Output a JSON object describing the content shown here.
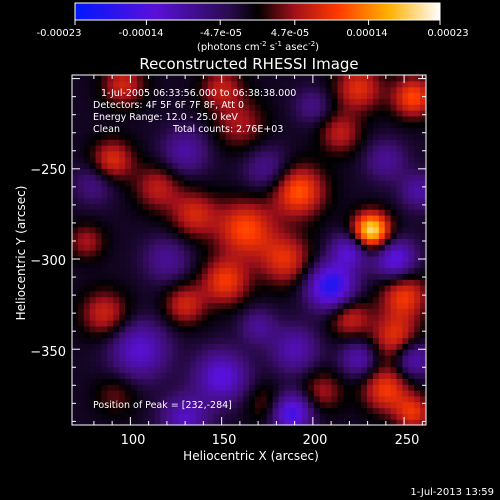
{
  "colorbar": {
    "ticks": [
      "-0.00023",
      "-0.00014",
      "-4.7e-05",
      "4.7e-05",
      "0.00014",
      "0.00023"
    ],
    "tick_values": [
      -0.00023,
      -0.00014,
      -4.7e-05,
      4.7e-05,
      0.00014,
      0.00023
    ],
    "range": [
      -0.00023,
      0.00023
    ],
    "units": "(photons cm",
    "units_exp1": "-2",
    "units_mid": " s",
    "units_exp2": "-1",
    "units_mid2": " asec",
    "units_exp3": "-2",
    "units_close": ")"
  },
  "title": "Reconstructed RHESSI Image",
  "annotations": {
    "time": "1-Jul-2005 06:33:56.000 to 06:38:38.000",
    "detectors": "Detectors: 4F 5F 6F 7F 8F, Att 0",
    "energy": "Energy Range: 12.0 - 25.0 keV",
    "method": "Clean",
    "counts": "Total counts: 2.76E+03",
    "peak": "Position of Peak = [232,-284]"
  },
  "footer_date": "1-Jul-2013 13:59",
  "colors": {
    "background": "#000000",
    "axes": "#ffffff",
    "peak": "#ffffdc"
  },
  "chart_data": {
    "type": "heatmap",
    "title": "Reconstructed RHESSI Image",
    "xlabel": "Heliocentric X (arcsec)",
    "ylabel": "Heliocentric Y (arcsec)",
    "xlim": [
      68,
      262
    ],
    "ylim": [
      -392,
      -198
    ],
    "xticks": [
      100,
      150,
      200,
      250
    ],
    "xtick_labels": [
      "100",
      "150",
      "200",
      "250"
    ],
    "yticks": [
      -250,
      -300,
      -350
    ],
    "ytick_labels": [
      "−250",
      "−300",
      "−350"
    ],
    "colormap": "blue-purple-red-yellow-white",
    "peak_position": [
      232,
      -284
    ],
    "sources": [
      {
        "x": 232,
        "y": -284,
        "amp": 1.0,
        "r": 7
      },
      {
        "x": 192,
        "y": -262,
        "amp": 0.6,
        "r": 10
      },
      {
        "x": 255,
        "y": -210,
        "amp": 0.55,
        "r": 8
      },
      {
        "x": 225,
        "y": -205,
        "amp": 0.45,
        "r": 9
      },
      {
        "x": 215,
        "y": -230,
        "amp": 0.35,
        "r": 8
      },
      {
        "x": 96,
        "y": -203,
        "amp": 0.4,
        "r": 8
      },
      {
        "x": 90,
        "y": -245,
        "amp": 0.45,
        "r": 8
      },
      {
        "x": 115,
        "y": -260,
        "amp": 0.35,
        "r": 9
      },
      {
        "x": 160,
        "y": -225,
        "amp": 0.3,
        "r": 10
      },
      {
        "x": 150,
        "y": -205,
        "amp": 0.35,
        "r": 8
      },
      {
        "x": 163,
        "y": -283,
        "amp": 0.55,
        "r": 11
      },
      {
        "x": 135,
        "y": -275,
        "amp": 0.4,
        "r": 9
      },
      {
        "x": 185,
        "y": -300,
        "amp": 0.45,
        "r": 10
      },
      {
        "x": 152,
        "y": -312,
        "amp": 0.5,
        "r": 9
      },
      {
        "x": 130,
        "y": -325,
        "amp": 0.4,
        "r": 8
      },
      {
        "x": 86,
        "y": -330,
        "amp": 0.4,
        "r": 9
      },
      {
        "x": 76,
        "y": -290,
        "amp": 0.3,
        "r": 7
      },
      {
        "x": 250,
        "y": -320,
        "amp": 0.5,
        "r": 9
      },
      {
        "x": 220,
        "y": -332,
        "amp": 0.4,
        "r": 8
      },
      {
        "x": 245,
        "y": -343,
        "amp": 0.45,
        "r": 9
      },
      {
        "x": 240,
        "y": -372,
        "amp": 0.5,
        "r": 9
      },
      {
        "x": 255,
        "y": -385,
        "amp": 0.45,
        "r": 7
      },
      {
        "x": 205,
        "y": -373,
        "amp": 0.3,
        "r": 8
      },
      {
        "x": 175,
        "y": -380,
        "amp": 0.25,
        "r": 8
      },
      {
        "x": 92,
        "y": -375,
        "amp": 0.2,
        "r": 8
      },
      {
        "x": 80,
        "y": -258,
        "amp": -0.25,
        "r": 8
      },
      {
        "x": 130,
        "y": -240,
        "amp": -0.35,
        "r": 9
      },
      {
        "x": 175,
        "y": -250,
        "amp": -0.3,
        "r": 9
      },
      {
        "x": 120,
        "y": -300,
        "amp": -0.3,
        "r": 9
      },
      {
        "x": 105,
        "y": -350,
        "amp": -0.5,
        "r": 11
      },
      {
        "x": 150,
        "y": -365,
        "amp": -0.55,
        "r": 10
      },
      {
        "x": 130,
        "y": -388,
        "amp": -0.45,
        "r": 9
      },
      {
        "x": 190,
        "y": -350,
        "amp": -0.4,
        "r": 9
      },
      {
        "x": 188,
        "y": -385,
        "amp": -0.7,
        "r": 8
      },
      {
        "x": 220,
        "y": -295,
        "amp": -0.5,
        "r": 7
      },
      {
        "x": 210,
        "y": -315,
        "amp": -0.8,
        "r": 9
      },
      {
        "x": 245,
        "y": -300,
        "amp": -0.6,
        "r": 8
      },
      {
        "x": 255,
        "y": -355,
        "amp": -0.45,
        "r": 7
      },
      {
        "x": 225,
        "y": -355,
        "amp": -0.4,
        "r": 7
      },
      {
        "x": 240,
        "y": -245,
        "amp": -0.3,
        "r": 8
      },
      {
        "x": 258,
        "y": -262,
        "amp": -0.35,
        "r": 7
      },
      {
        "x": 200,
        "y": -215,
        "amp": -0.25,
        "r": 7
      },
      {
        "x": 170,
        "y": -337,
        "amp": -0.3,
        "r": 7
      }
    ]
  }
}
